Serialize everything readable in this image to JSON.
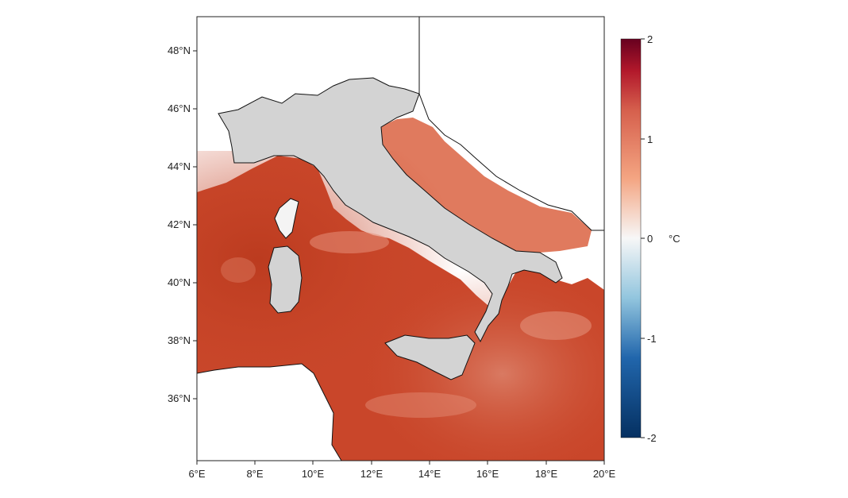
{
  "map": {
    "x_ticks": [
      "6°E",
      "8°E",
      "10°E",
      "12°E",
      "14°E",
      "16°E",
      "18°E",
      "20°E"
    ],
    "y_ticks": [
      "48°N",
      "46°N",
      "44°N",
      "42°N",
      "40°N",
      "38°N",
      "36°N"
    ],
    "extent": {
      "lon": [
        6,
        20
      ],
      "lat": [
        34,
        49.2
      ]
    },
    "land_color": "#d3d3d3",
    "sea_color": "#c9462a"
  },
  "colorbar": {
    "ticks": [
      "2",
      "1",
      "0",
      "-1",
      "-2"
    ],
    "unit": "°C",
    "range": [
      -2,
      2
    ],
    "colors": [
      "#053061",
      "#2c7bb6",
      "#f7f7f7",
      "#ef8a62",
      "#67001f"
    ]
  }
}
